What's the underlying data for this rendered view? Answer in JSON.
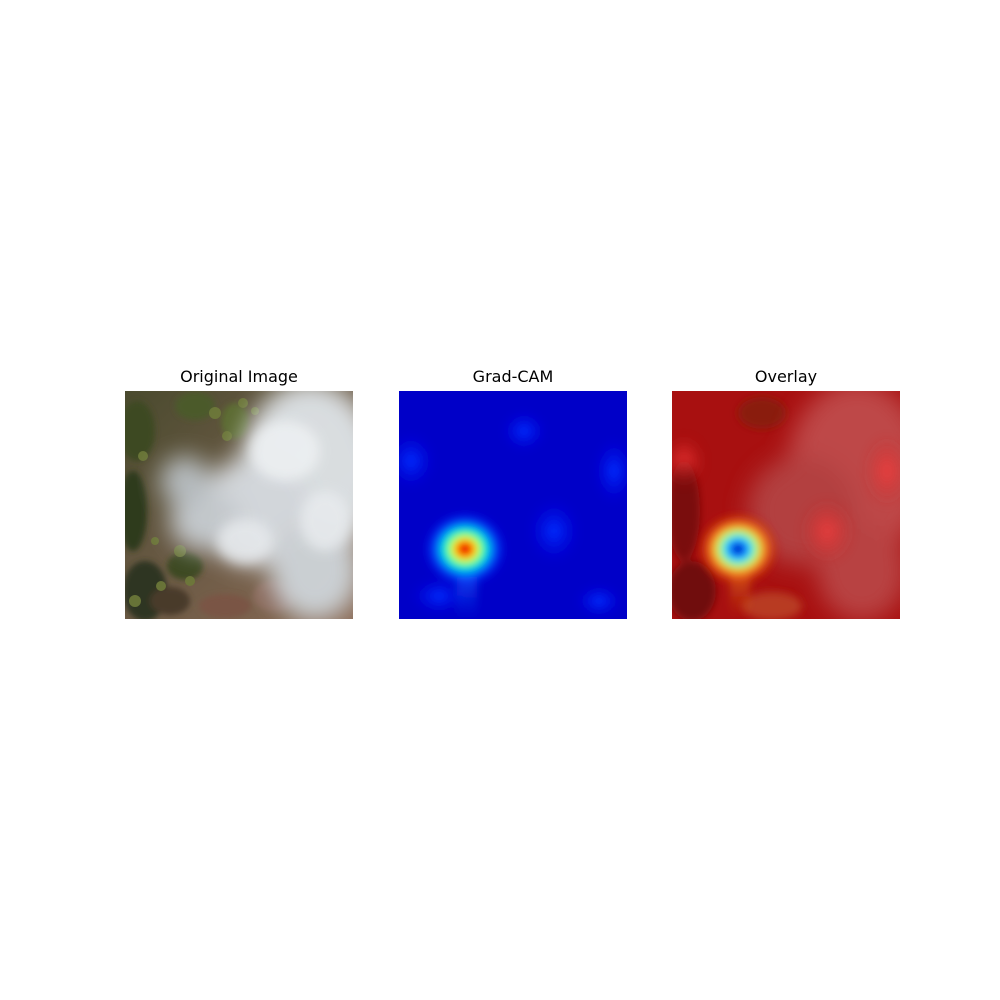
{
  "figure": {
    "panels": [
      {
        "title": "Original Image"
      },
      {
        "title": "Grad-CAM"
      },
      {
        "title": "Overlay"
      }
    ]
  }
}
